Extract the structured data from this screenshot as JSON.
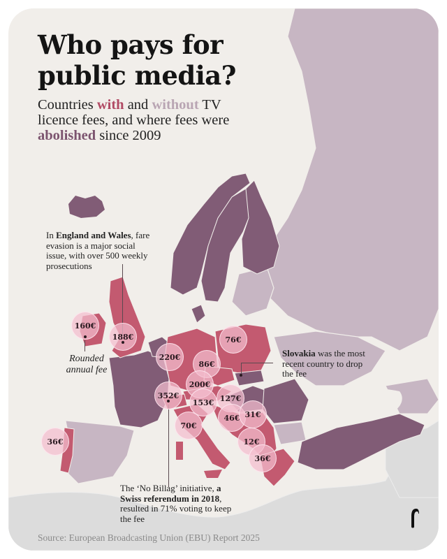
{
  "header": {
    "title_line1": "Who pays for",
    "title_line2": "public media?",
    "subtitle": {
      "part1": "Countries ",
      "with": "with",
      "part2": " and ",
      "without": "without",
      "part3": " TV licence fees, and where fees were ",
      "abolished": "abolished",
      "part4": " since 2009"
    }
  },
  "legend_colors": {
    "with_fee": "#c35a70",
    "without_fee": "#c7b6c3",
    "abolished": "#815c76",
    "non_europe": "#dcdcdc",
    "sea": "#f1eeea"
  },
  "fees": [
    {
      "country": "Ireland",
      "label": "160€",
      "value": 160
    },
    {
      "country": "United Kingdom",
      "label": "188€",
      "value": 188
    },
    {
      "country": "Germany",
      "label": "220€",
      "value": 220
    },
    {
      "country": "Poland",
      "label": "76€",
      "value": 76
    },
    {
      "country": "Czechia",
      "label": "86€",
      "value": 86
    },
    {
      "country": "Austria",
      "label": "200€",
      "value": 200
    },
    {
      "country": "Switzerland",
      "label": "352€",
      "value": 352
    },
    {
      "country": "Slovenia",
      "label": "153€",
      "value": 153
    },
    {
      "country": "Croatia",
      "label": "127€",
      "value": 127
    },
    {
      "country": "Bosnia and Herzegovina",
      "label": "46€",
      "value": 46
    },
    {
      "country": "Serbia",
      "label": "31€",
      "value": 31
    },
    {
      "country": "Italy",
      "label": "70€",
      "value": 70
    },
    {
      "country": "North Macedonia",
      "label": "12€",
      "value": 12
    },
    {
      "country": "Greece",
      "label": "36€",
      "value": 36
    },
    {
      "country": "Portugal",
      "label": "36€",
      "value": 36
    }
  ],
  "annotations": {
    "england": {
      "bold": "England and Wales",
      "pre": "In ",
      "rest": ", fare evasion is a major social issue, with over 500 weekly prosecutions"
    },
    "rounded": "Rounded annual fee",
    "slovakia": {
      "bold": "Slovakia",
      "rest": " was the most recent country to drop the fee"
    },
    "swiss": {
      "pre": "The ‘No Billag’ initiative, ",
      "bold": "a Swiss referendum in 2018",
      "rest": ", resulted in 71% voting to keep the fee"
    }
  },
  "footer": {
    "source": "Source: European Broadcasting Union (EBU) Report 2025"
  },
  "logo": {
    "icon": "publisher-logo-icon"
  }
}
